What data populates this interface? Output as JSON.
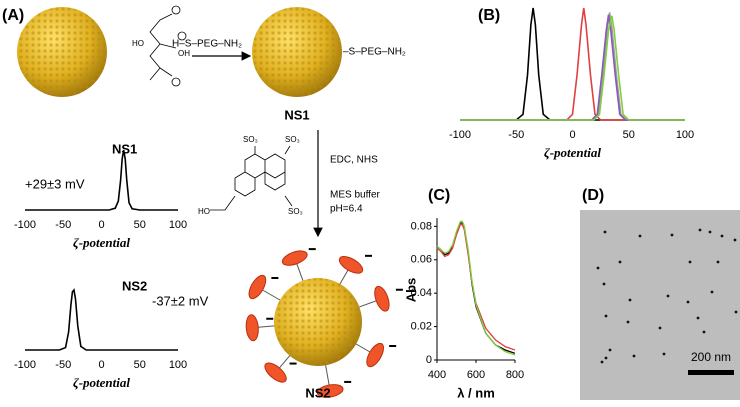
{
  "panels": [
    "(A)",
    "(B)",
    "(C)",
    "(D)"
  ],
  "scheme": {
    "reagent": "H–S–PEG–NH₂",
    "ligand": "–S–PEG–NH₂",
    "ns1": "NS1",
    "ns2": "NS2",
    "conditions": [
      "EDC, NHS",
      "MES buffer",
      "pH=6.4"
    ],
    "citrate_labels": [
      "HO",
      "OH"
    ],
    "pyrene_labels": [
      "SO₃",
      "SO₃",
      "SO₃",
      "HO"
    ]
  },
  "tem": {
    "scale_bar": "200 nm"
  },
  "chart_data": [
    {
      "type": "line",
      "label": "NS1",
      "annotation": "+29±3 mV",
      "xlabel": "ζ-potential",
      "xlim": [
        -100,
        100
      ],
      "xticks": [
        -100,
        -50,
        0,
        50,
        100
      ],
      "ylim": [
        0,
        1
      ],
      "x": [
        -100,
        10,
        18,
        22,
        25,
        27,
        29,
        31,
        33,
        36,
        40,
        50,
        100
      ],
      "series": [
        {
          "color": "#000000",
          "values": [
            0,
            0,
            0.03,
            0.15,
            0.5,
            0.85,
            1,
            0.85,
            0.5,
            0.12,
            0.02,
            0,
            0
          ]
        }
      ]
    },
    {
      "type": "line",
      "label": "NS2",
      "annotation": "-37±2 mV",
      "xlabel": "ζ-potential",
      "xlim": [
        -100,
        100
      ],
      "xticks": [
        -100,
        -50,
        0,
        50,
        100
      ],
      "ylim": [
        0,
        1
      ],
      "x": [
        -100,
        -55,
        -47,
        -43,
        -40,
        -38,
        -36,
        -34,
        -31,
        -27,
        -20,
        100
      ],
      "series": [
        {
          "color": "#000000",
          "values": [
            0,
            0,
            0.04,
            0.3,
            0.75,
            0.97,
            1,
            0.85,
            0.4,
            0.06,
            0,
            0
          ]
        }
      ]
    },
    {
      "type": "line",
      "xlabel": "ζ-potential",
      "xlim": [
        -100,
        100
      ],
      "xticks": [
        -100,
        -50,
        0,
        50,
        100
      ],
      "ylim": [
        0,
        1
      ],
      "series": [
        {
          "color": "#000000",
          "x": [
            -100,
            -50,
            -44,
            -40,
            -37,
            -35,
            -33,
            -30,
            -26,
            -20,
            100
          ],
          "values": [
            0,
            0,
            0.05,
            0.4,
            0.85,
            1,
            0.85,
            0.4,
            0.05,
            0,
            0
          ]
        },
        {
          "color": "#e04040",
          "x": [
            -100,
            -5,
            0,
            4,
            8,
            10,
            12,
            16,
            20,
            25,
            100
          ],
          "values": [
            0,
            0,
            0.05,
            0.4,
            0.85,
            1,
            0.85,
            0.4,
            0.05,
            0,
            0
          ]
        },
        {
          "color": "#9a9a9a",
          "x": [
            -100,
            18,
            23,
            27,
            31,
            33,
            35,
            39,
            43,
            48,
            100
          ],
          "values": [
            0,
            0,
            0.05,
            0.4,
            0.82,
            0.96,
            0.82,
            0.4,
            0.05,
            0,
            0
          ]
        },
        {
          "color": "#8a5ab8",
          "x": [
            -100,
            17,
            22,
            26,
            30,
            32,
            34,
            38,
            42,
            47,
            100
          ],
          "values": [
            0,
            0,
            0.05,
            0.4,
            0.8,
            0.94,
            0.8,
            0.4,
            0.05,
            0,
            0
          ]
        },
        {
          "color": "#7fcf3f",
          "x": [
            -100,
            19,
            24,
            28,
            32,
            35,
            37,
            41,
            45,
            50,
            100
          ],
          "values": [
            0,
            0,
            0.05,
            0.4,
            0.8,
            0.93,
            0.8,
            0.4,
            0.05,
            0,
            0
          ]
        }
      ]
    },
    {
      "type": "line",
      "xlabel": "λ / nm",
      "ylabel": "Abs",
      "xlim": [
        400,
        800
      ],
      "xticks": [
        400,
        600,
        800
      ],
      "ylim": [
        0,
        0.085
      ],
      "yticks": [
        0,
        0.02,
        0.04,
        0.06,
        0.08
      ],
      "x": [
        400,
        420,
        440,
        460,
        480,
        500,
        520,
        530,
        540,
        560,
        580,
        600,
        650,
        700,
        750,
        800
      ],
      "series": [
        {
          "color": "#000000",
          "values": [
            0.068,
            0.066,
            0.063,
            0.064,
            0.068,
            0.076,
            0.082,
            0.082,
            0.079,
            0.064,
            0.045,
            0.032,
            0.016,
            0.009,
            0.006,
            0.004
          ]
        },
        {
          "color": "#e04040",
          "values": [
            0.067,
            0.065,
            0.062,
            0.063,
            0.067,
            0.075,
            0.081,
            0.081,
            0.078,
            0.063,
            0.046,
            0.034,
            0.019,
            0.012,
            0.008,
            0.006
          ]
        },
        {
          "color": "#7fcf3f",
          "values": [
            0.068,
            0.066,
            0.064,
            0.065,
            0.069,
            0.077,
            0.083,
            0.083,
            0.08,
            0.066,
            0.047,
            0.033,
            0.016,
            0.009,
            0.005,
            0.003
          ]
        }
      ]
    }
  ]
}
